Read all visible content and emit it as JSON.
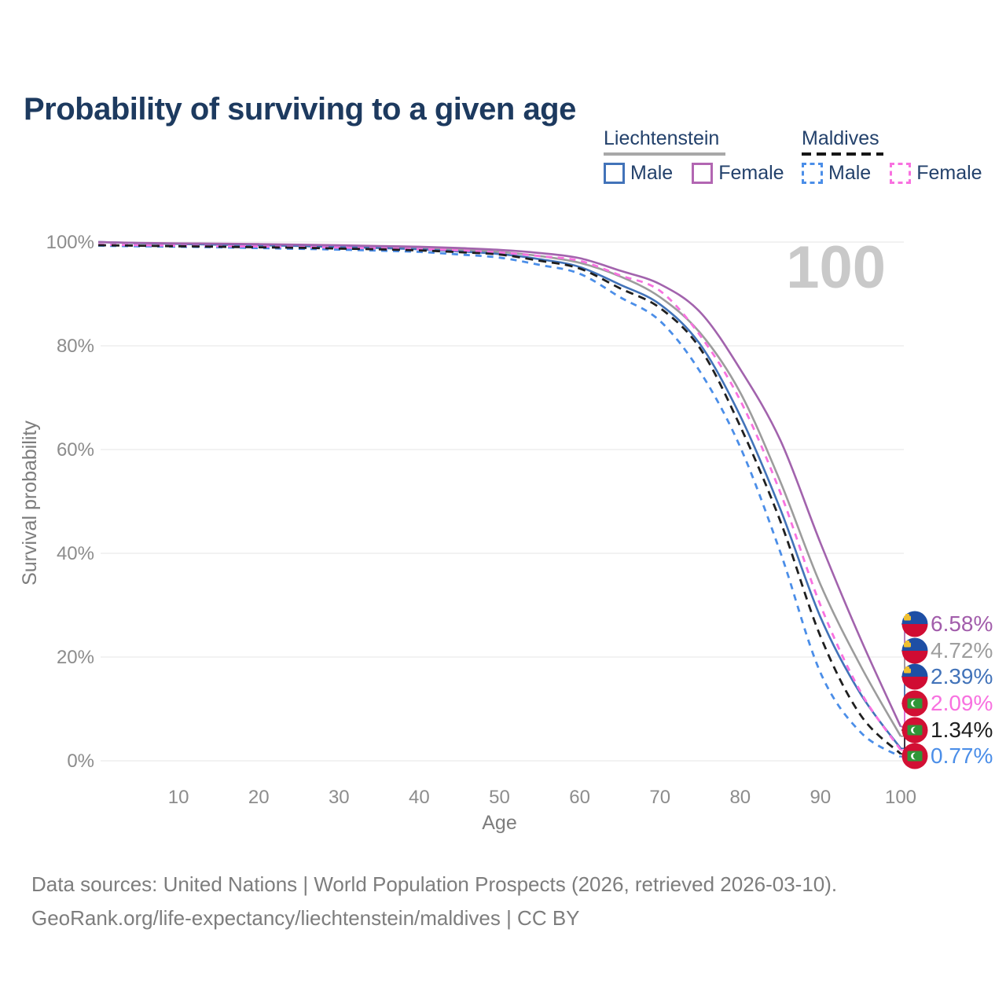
{
  "title": "Probability of surviving to a given age",
  "legend": {
    "groups": [
      {
        "title": "Liechtenstein",
        "line_style": "solid",
        "line_color": "#a8a8a8",
        "items": [
          {
            "label": "Male",
            "color": "#4273b9",
            "dashed": false
          },
          {
            "label": "Female",
            "color": "#b266b2",
            "dashed": false
          }
        ]
      },
      {
        "title": "Maldives",
        "line_style": "dashed",
        "line_color": "#161616",
        "items": [
          {
            "label": "Male",
            "color": "#4b8ee8",
            "dashed": true
          },
          {
            "label": "Female",
            "color": "#f871e0",
            "dashed": true
          }
        ]
      }
    ]
  },
  "chart_data": {
    "type": "line",
    "title": "Probability of surviving to a given age",
    "xlabel": "Age",
    "ylabel": "Survival probability",
    "xlim": [
      0,
      100
    ],
    "ylim": [
      0,
      100
    ],
    "grid": "horizontal",
    "legend_position": "top-right",
    "watermark": "100",
    "x_ticks": [
      10,
      20,
      30,
      40,
      50,
      60,
      70,
      80,
      90,
      100
    ],
    "y_ticks": [
      {
        "value": 0,
        "label": "0%"
      },
      {
        "value": 20,
        "label": "20%"
      },
      {
        "value": 40,
        "label": "40%"
      },
      {
        "value": 60,
        "label": "60%"
      },
      {
        "value": 80,
        "label": "80%"
      },
      {
        "value": 100,
        "label": "100%"
      }
    ],
    "x": [
      0,
      5,
      10,
      15,
      20,
      25,
      30,
      35,
      40,
      45,
      50,
      55,
      60,
      65,
      70,
      75,
      80,
      85,
      90,
      95,
      100
    ],
    "series": [
      {
        "name": "Liechtenstein Female",
        "country": "Liechtenstein",
        "sex": "Female",
        "color": "#a263ad",
        "dash": "solid",
        "end_value": 6.58,
        "end_label": "6.58%",
        "label_color": "#a25dab",
        "values": [
          100,
          99.85,
          99.75,
          99.7,
          99.6,
          99.5,
          99.4,
          99.25,
          99.1,
          98.85,
          98.5,
          97.9,
          96.9,
          94.5,
          91.9,
          86.5,
          75.5,
          61.8,
          42.0,
          23.5,
          6.58
        ]
      },
      {
        "name": "Liechtenstein Both sexes",
        "country": "Liechtenstein",
        "sex": "Both sexes",
        "color": "#9c9c9c",
        "dash": "solid",
        "end_value": 4.72,
        "end_label": "4.72%",
        "label_color": "#9e9e9e",
        "values": [
          100,
          99.8,
          99.7,
          99.6,
          99.5,
          99.4,
          99.25,
          99.05,
          98.85,
          98.55,
          98.1,
          97.3,
          96.0,
          93.4,
          89.4,
          82.5,
          71.0,
          53.8,
          34.0,
          18.3,
          4.72
        ]
      },
      {
        "name": "Liechtenstein Male",
        "country": "Liechtenstein",
        "sex": "Male",
        "color": "#4273b9",
        "dash": "solid",
        "end_value": 2.39,
        "end_label": "2.39%",
        "label_color": "#4273b9",
        "values": [
          100,
          99.8,
          99.65,
          99.5,
          99.4,
          99.25,
          99.05,
          98.85,
          98.6,
          98.2,
          97.7,
          96.7,
          95.2,
          91.8,
          88.0,
          80.3,
          66.5,
          48.5,
          27.7,
          12.9,
          2.39
        ]
      },
      {
        "name": "Maldives Female",
        "country": "Maldives",
        "sex": "Female",
        "color": "#f871e0",
        "dash": "dashed",
        "end_value": 2.09,
        "end_label": "2.09%",
        "label_color": "#f871e0",
        "values": [
          99.5,
          99.4,
          99.3,
          99.2,
          99.15,
          99.05,
          98.95,
          98.8,
          98.65,
          98.4,
          98.0,
          97.3,
          96.4,
          93.6,
          90.6,
          82.0,
          69.5,
          51.7,
          30.0,
          13.3,
          2.09
        ]
      },
      {
        "name": "Maldives Both sexes",
        "country": "Maldives",
        "sex": "Both sexes",
        "color": "#1f1f1f",
        "dash": "dashed",
        "end_value": 1.34,
        "end_label": "1.34%",
        "label_color": "#1f1f1f",
        "values": [
          99.4,
          99.3,
          99.2,
          99.1,
          99.0,
          98.9,
          98.75,
          98.6,
          98.4,
          98.05,
          97.6,
          96.4,
          94.9,
          91.1,
          87.3,
          79.5,
          64.5,
          46.2,
          24.0,
          8.8,
          1.34
        ]
      },
      {
        "name": "Maldives Male",
        "country": "Maldives",
        "sex": "Male",
        "color": "#4b8ee8",
        "dash": "dashed",
        "end_value": 0.77,
        "end_label": "0.77%",
        "label_color": "#4b8ee8",
        "values": [
          99.3,
          99.2,
          99.1,
          99.0,
          98.85,
          98.7,
          98.55,
          98.35,
          98.1,
          97.6,
          97.0,
          95.6,
          93.9,
          89.4,
          84.8,
          75.0,
          60.5,
          40.2,
          17.0,
          5.5,
          0.77
        ]
      }
    ],
    "flag_colors": {
      "liechtenstein": {
        "top": "#1e4fa5",
        "bottom": "#d00c33",
        "crown": "#f0c030"
      },
      "maldives": {
        "field": "#d21034",
        "panel": "#2f9638",
        "crescent": "#ffffff"
      }
    }
  },
  "footer": {
    "line1": "Data sources: United Nations | World Population Prospects (2026, retrieved 2026-03-10).",
    "line2": "GeoRank.org/life-expectancy/liechtenstein/maldives | CC BY"
  }
}
